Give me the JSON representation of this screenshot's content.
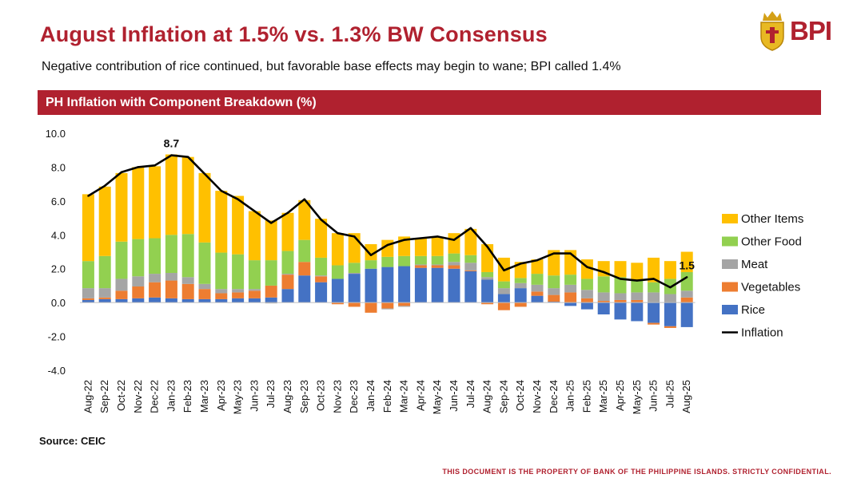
{
  "header": {
    "title": "August Inflation at 1.5% vs. 1.3% BW Consensus",
    "subtitle": "Negative contribution of rice continued, but favorable base effects may begin to wane; BPI called 1.4%",
    "logo_text": "BPI"
  },
  "banner": {
    "label": "PH Inflation with Component Breakdown (%)"
  },
  "footer": {
    "source": "Source: CEIC",
    "confidential": "THIS DOCUMENT IS THE PROPERTY OF BANK OF THE PHILIPPINE ISLANDS.  STRICTLY CONFIDENTIAL."
  },
  "colors": {
    "brand": "#b0212f",
    "Other Items": "#ffc000",
    "Other Food": "#92d050",
    "Meat": "#a5a5a5",
    "Vegetables": "#ed7d31",
    "Rice": "#4472c4",
    "Inflation": "#000000"
  },
  "chart_data": {
    "type": "bar",
    "stacked": true,
    "title": "PH Inflation with Component Breakdown (%)",
    "xlabel": "",
    "ylabel": "",
    "ylim": [
      -4,
      10
    ],
    "yticks": [
      10,
      8,
      6,
      4,
      2,
      0,
      -2,
      -4
    ],
    "ytick_labels": [
      "10.0",
      "8.0",
      "6.0",
      "4.0",
      "2.0",
      "0.0",
      "-2.0",
      "-4.0"
    ],
    "grid": false,
    "legend_position": "right",
    "categories": [
      "Aug-22",
      "Sep-22",
      "Oct-22",
      "Nov-22",
      "Dec-22",
      "Jan-23",
      "Feb-23",
      "Mar-23",
      "Apr-23",
      "May-23",
      "Jun-23",
      "Jul-23",
      "Aug-23",
      "Sep-23",
      "Oct-23",
      "Nov-23",
      "Dec-23",
      "Jan-24",
      "Feb-24",
      "Mar-24",
      "Apr-24",
      "May-24",
      "Jun-24",
      "Jul-24",
      "Aug-24",
      "Sep-24",
      "Oct-24",
      "Nov-24",
      "Dec-24",
      "Jan-25",
      "Feb-25",
      "Mar-25",
      "Apr-25",
      "May-25",
      "Jun-25",
      "Jul-25",
      "Aug-25"
    ],
    "series": [
      {
        "name": "Rice",
        "values": [
          0.15,
          0.2,
          0.2,
          0.25,
          0.3,
          0.25,
          0.2,
          0.2,
          0.2,
          0.25,
          0.25,
          0.3,
          0.8,
          1.6,
          1.2,
          1.4,
          1.7,
          2.0,
          2.1,
          2.15,
          2.05,
          2.05,
          2.0,
          1.85,
          1.35,
          0.5,
          0.85,
          0.4,
          0.05,
          -0.2,
          -0.4,
          -0.7,
          -1.0,
          -1.1,
          -1.2,
          -1.4,
          -1.45
        ]
      },
      {
        "name": "Vegetables",
        "values": [
          0.1,
          0.1,
          0.5,
          0.7,
          0.9,
          1.05,
          0.9,
          0.6,
          0.35,
          0.35,
          0.45,
          0.7,
          0.85,
          0.8,
          0.35,
          -0.1,
          -0.25,
          -0.6,
          -0.35,
          -0.2,
          0.15,
          0.15,
          0.2,
          0.05,
          -0.1,
          -0.45,
          -0.25,
          0.25,
          0.4,
          0.6,
          0.25,
          0.1,
          0.15,
          0.15,
          -0.1,
          -0.1,
          0.3
        ]
      },
      {
        "name": "Meat",
        "values": [
          0.6,
          0.55,
          0.7,
          0.6,
          0.5,
          0.45,
          0.4,
          0.3,
          0.25,
          0.2,
          0.1,
          -0.05,
          0.05,
          0.0,
          0.05,
          0.0,
          0.05,
          0.0,
          -0.05,
          -0.05,
          0.05,
          0.05,
          0.2,
          0.45,
          0.15,
          0.35,
          0.3,
          0.4,
          0.4,
          0.45,
          0.5,
          0.5,
          0.4,
          0.45,
          0.6,
          0.5,
          0.4
        ]
      },
      {
        "name": "Other Food",
        "values": [
          1.6,
          1.9,
          2.2,
          2.2,
          2.1,
          2.25,
          2.55,
          2.45,
          2.15,
          2.05,
          1.7,
          1.5,
          1.35,
          1.3,
          1.05,
          0.8,
          0.6,
          0.5,
          0.6,
          0.6,
          0.5,
          0.5,
          0.5,
          0.45,
          0.3,
          0.4,
          0.3,
          0.65,
          0.75,
          0.6,
          0.65,
          0.95,
          0.95,
          0.75,
          0.6,
          0.9,
          1.1
        ]
      },
      {
        "name": "Other Items",
        "values": [
          3.95,
          4.1,
          4.05,
          4.25,
          4.25,
          4.75,
          4.55,
          4.1,
          3.65,
          3.45,
          2.9,
          2.35,
          2.25,
          2.35,
          2.3,
          1.9,
          1.75,
          0.95,
          1.0,
          1.15,
          1.05,
          1.15,
          1.2,
          1.55,
          1.65,
          1.4,
          0.95,
          0.85,
          1.5,
          1.45,
          1.15,
          0.9,
          0.95,
          1.0,
          1.45,
          1.05,
          1.2
        ]
      }
    ],
    "line": {
      "name": "Inflation",
      "values": [
        6.3,
        6.9,
        7.7,
        8.0,
        8.1,
        8.7,
        8.6,
        7.6,
        6.6,
        6.1,
        5.4,
        4.7,
        5.3,
        6.1,
        4.9,
        4.1,
        3.9,
        2.8,
        3.4,
        3.7,
        3.8,
        3.9,
        3.7,
        4.4,
        3.3,
        1.9,
        2.3,
        2.5,
        2.9,
        2.9,
        2.1,
        1.8,
        1.4,
        1.3,
        1.4,
        0.9,
        1.5
      ]
    },
    "annotations": [
      {
        "category": "Jan-23",
        "text": "8.7"
      },
      {
        "category": "Aug-25",
        "text": "1.5"
      }
    ],
    "legend": [
      "Other Items",
      "Other Food",
      "Meat",
      "Vegetables",
      "Rice",
      "Inflation"
    ]
  }
}
